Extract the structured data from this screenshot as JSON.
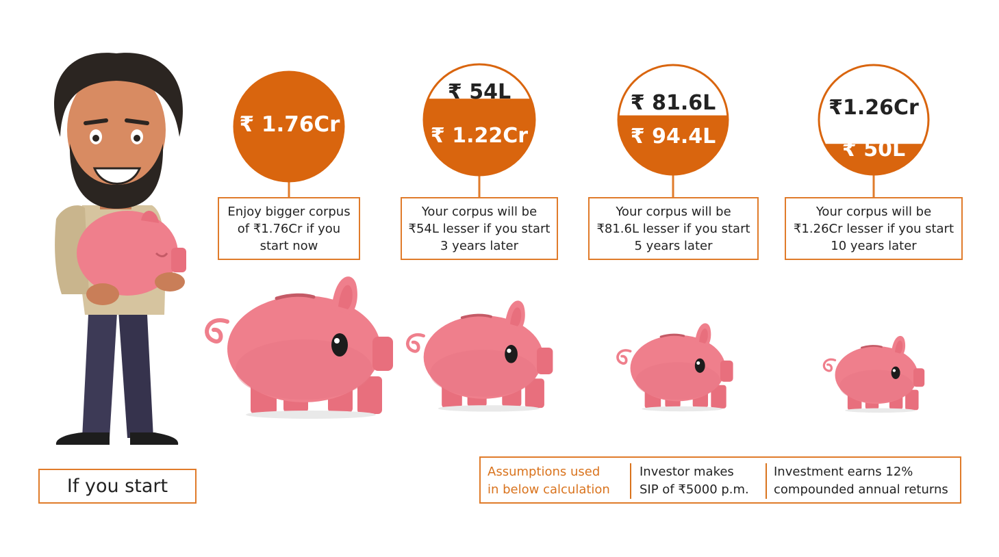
{
  "colors": {
    "accent": "#d9650e",
    "box_border": "#e07b2a",
    "pig": "#ef7f8c"
  },
  "scenarios": [
    {
      "corpus": "₹ 1.76Cr",
      "lesser": "",
      "text": [
        "Enjoy bigger corpus",
        "of ₹1.76Cr if you",
        "start now"
      ],
      "fill": 1.0
    },
    {
      "corpus": "₹ 1.22Cr",
      "lesser": "₹ 54L",
      "text": [
        "Your corpus will be",
        "₹54L lesser if you start",
        "3 years later"
      ],
      "fill": 0.69
    },
    {
      "corpus": "₹ 94.4L",
      "lesser": "₹ 81.6L",
      "text": [
        "Your corpus will be",
        "₹81.6L lesser if you start",
        "5 years later"
      ],
      "fill": 0.54
    },
    {
      "corpus": "₹ 50L",
      "lesser": "₹1.26Cr",
      "text": [
        "Your corpus will be",
        "₹1.26Cr lesser if you start",
        "10 years later"
      ],
      "fill": 0.28
    }
  ],
  "start_label": "If you start",
  "assumptions": {
    "title": [
      "Assumptions used",
      "in below calculation"
    ],
    "sip": [
      "Investor makes",
      "SIP of ₹5000 p.m."
    ],
    "returns": [
      "Investment earns 12%",
      "compounded annual returns"
    ]
  }
}
